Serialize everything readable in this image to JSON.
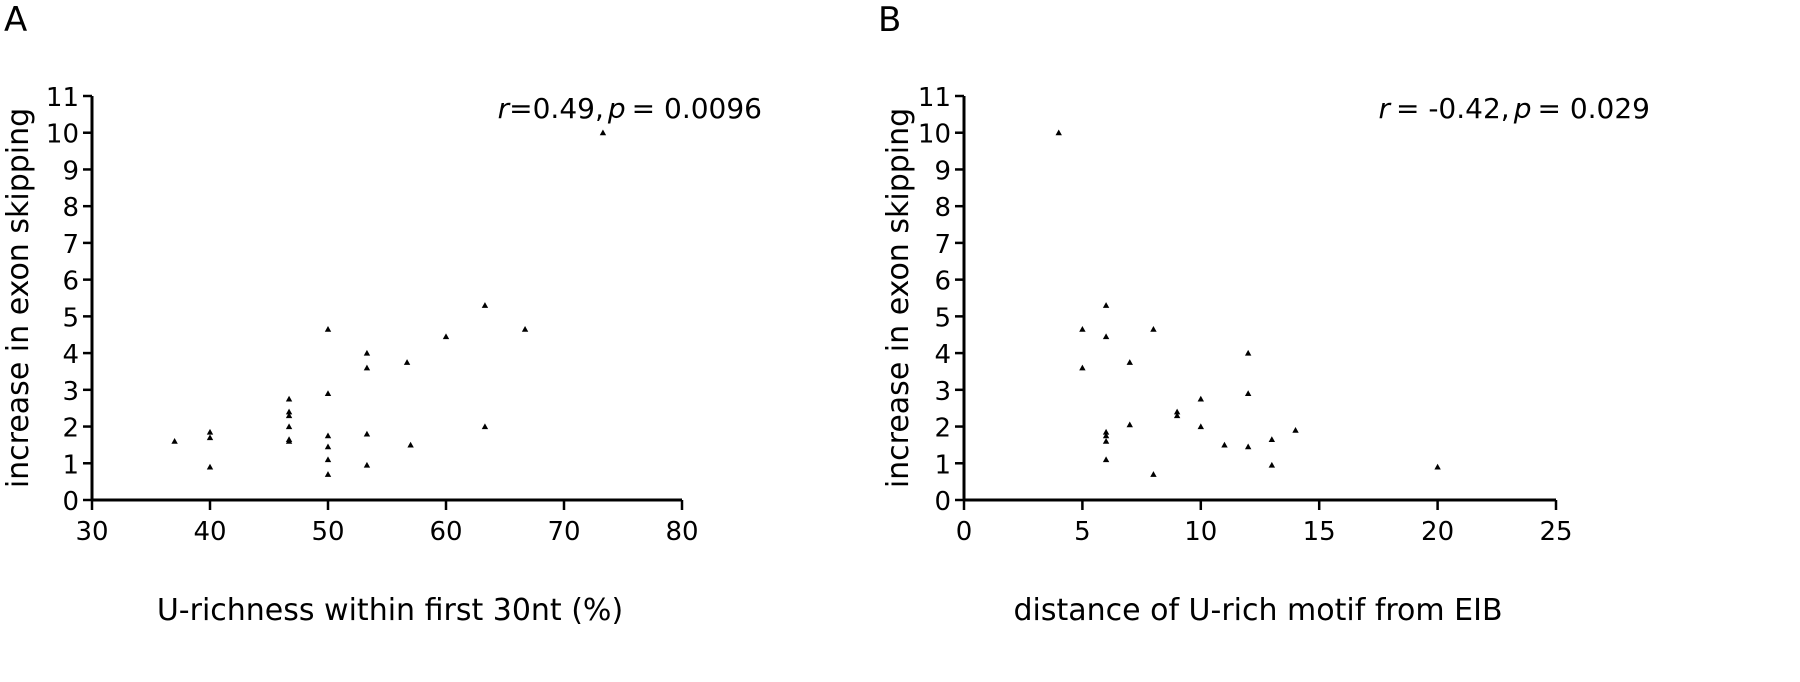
{
  "panels": [
    {
      "letter": "A"
    },
    {
      "letter": "B"
    }
  ],
  "chart_data": [
    {
      "type": "scatter",
      "title": "",
      "annotation": {
        "r_label": "r",
        "r_value": "=0.49",
        "sep": ",",
        "p_label": "p",
        "p_value": "= 0.0096"
      },
      "xlabel": "U-richness within first 30nt (%)",
      "ylabel": "increase in exon skipping",
      "xlim": [
        30,
        80
      ],
      "ylim": [
        0,
        11
      ],
      "xticks": [
        30,
        40,
        50,
        60,
        70,
        80
      ],
      "yticks": [
        0,
        1,
        2,
        3,
        4,
        5,
        6,
        7,
        8,
        9,
        10,
        11
      ],
      "grid": false,
      "marker": "triangle",
      "x": [
        37,
        40,
        40,
        40,
        46.7,
        46.7,
        46.7,
        46.7,
        46.7,
        46.7,
        50,
        50,
        50,
        50,
        50,
        50,
        53.3,
        53.3,
        53.3,
        53.3,
        56.7,
        57,
        60,
        63.3,
        63.3,
        66.7,
        73.3
      ],
      "y": [
        1.6,
        1.85,
        1.7,
        0.9,
        2.75,
        2.4,
        2.3,
        2.0,
        1.65,
        1.6,
        4.65,
        2.9,
        1.75,
        1.45,
        1.1,
        0.7,
        4.0,
        3.6,
        1.8,
        0.95,
        3.75,
        1.5,
        4.45,
        5.3,
        2.0,
        4.65,
        10.0
      ]
    },
    {
      "type": "scatter",
      "title": "",
      "annotation": {
        "r_label": "r",
        "r_value": "= -0.42",
        "sep": ",",
        "p_label": "p",
        "p_value": "= 0.029"
      },
      "xlabel": "distance of U-rich motif from EIB",
      "ylabel": "increase in exon skipping",
      "xlim": [
        0,
        25
      ],
      "ylim": [
        0,
        11
      ],
      "xticks": [
        0,
        5,
        10,
        15,
        20,
        25
      ],
      "yticks": [
        0,
        1,
        2,
        3,
        4,
        5,
        6,
        7,
        8,
        9,
        10,
        11
      ],
      "grid": false,
      "marker": "triangle",
      "x": [
        4,
        5,
        5,
        6,
        6,
        6,
        6,
        6,
        6,
        7,
        7,
        8,
        8,
        9,
        9,
        10,
        10,
        11,
        12,
        12,
        12,
        13,
        13,
        14,
        20
      ],
      "y": [
        10.0,
        4.65,
        3.6,
        5.3,
        4.45,
        1.85,
        1.75,
        1.6,
        1.1,
        3.75,
        2.05,
        4.65,
        0.7,
        2.4,
        2.3,
        2.75,
        2.0,
        1.5,
        4.0,
        2.9,
        1.45,
        1.65,
        0.95,
        1.9,
        0.9
      ]
    }
  ]
}
